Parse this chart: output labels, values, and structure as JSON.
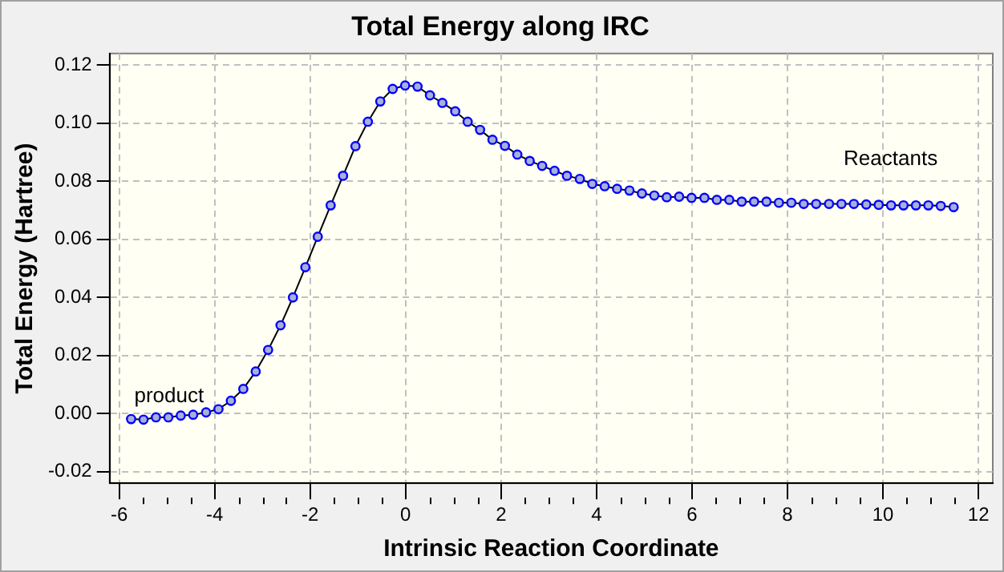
{
  "chart_data": {
    "type": "line",
    "title": "Total Energy along IRC",
    "xlabel": "Intrinsic Reaction Coordinate",
    "ylabel": "Total Energy (Hartree)",
    "xlim": [
      -6.2,
      12.3
    ],
    "ylim": [
      -0.024,
      0.124
    ],
    "xticks": [
      -6,
      -4,
      -2,
      0,
      2,
      4,
      6,
      8,
      10,
      12
    ],
    "yticks": [
      {
        "value": -0.02,
        "label": "-0.02"
      },
      {
        "value": 0,
        "label": "0.00"
      },
      {
        "value": 0.02,
        "label": "0.02"
      },
      {
        "value": 0.04,
        "label": "0.04"
      },
      {
        "value": 0.06,
        "label": "0.06"
      },
      {
        "value": 0.08,
        "label": "0.08"
      },
      {
        "value": 0.1,
        "label": "0.10"
      },
      {
        "value": 0.12,
        "label": "0.12"
      }
    ],
    "grid": true,
    "legend": false,
    "marker": "circle",
    "line_style": "solid",
    "series": [
      {
        "color": "#0000ff",
        "x": [
          -5.75,
          -5.49,
          -5.23,
          -4.97,
          -4.71,
          -4.45,
          -4.18,
          -3.92,
          -3.66,
          -3.4,
          -3.14,
          -2.88,
          -2.62,
          -2.36,
          -2.1,
          -1.84,
          -1.57,
          -1.31,
          -1.05,
          -0.79,
          -0.53,
          -0.27,
          -0.01,
          0.25,
          0.51,
          0.77,
          1.04,
          1.3,
          1.56,
          1.82,
          2.08,
          2.34,
          2.6,
          2.86,
          3.12,
          3.38,
          3.65,
          3.91,
          4.17,
          4.43,
          4.69,
          4.95,
          5.21,
          5.47,
          5.73,
          5.99,
          6.26,
          6.52,
          6.78,
          7.04,
          7.3,
          7.56,
          7.82,
          8.08,
          8.34,
          8.6,
          8.87,
          9.13,
          9.39,
          9.65,
          9.91,
          10.17,
          10.43,
          10.69,
          10.95,
          11.21,
          11.48
        ],
        "values": [
          -0.0019,
          -0.0021,
          -0.0013,
          -0.0013,
          -0.0007,
          -0.0004,
          0.0004,
          0.0015,
          0.0044,
          0.0085,
          0.0145,
          0.0219,
          0.0304,
          0.04,
          0.0504,
          0.0609,
          0.0717,
          0.0819,
          0.0921,
          0.1005,
          0.1075,
          0.1118,
          0.113,
          0.1126,
          0.1096,
          0.107,
          0.1041,
          0.1005,
          0.0977,
          0.0943,
          0.0922,
          0.0892,
          0.087,
          0.0853,
          0.0836,
          0.0819,
          0.0808,
          0.0791,
          0.0783,
          0.0774,
          0.0768,
          0.0758,
          0.0751,
          0.0745,
          0.0747,
          0.0743,
          0.0743,
          0.0736,
          0.0736,
          0.073,
          0.073,
          0.073,
          0.0726,
          0.0726,
          0.0722,
          0.0722,
          0.0722,
          0.0722,
          0.0722,
          0.072,
          0.0719,
          0.0717,
          0.0717,
          0.0717,
          0.0717,
          0.0715,
          0.0711
        ]
      }
    ],
    "annotations": [
      "product",
      "Reactants"
    ]
  }
}
